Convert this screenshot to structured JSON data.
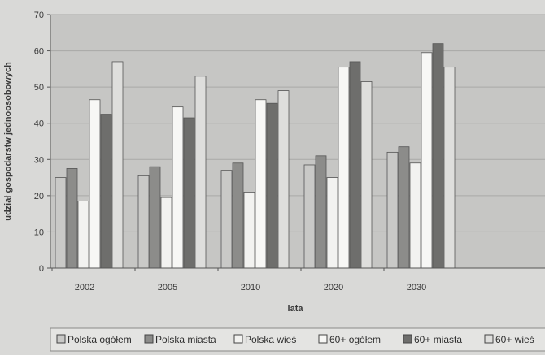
{
  "chart_data": {
    "type": "bar",
    "title": "",
    "xlabel": "lata",
    "ylabel": "udział gospodarstw jednoosobowych",
    "categories": [
      "2002",
      "2005",
      "2010",
      "2020",
      "2030"
    ],
    "ylim": [
      0,
      70
    ],
    "yticks": [
      0,
      10,
      20,
      30,
      40,
      50,
      60,
      70
    ],
    "grid": true,
    "legend_position": "bottom",
    "series": [
      {
        "name": "Polska ogółem",
        "values": [
          25,
          25.5,
          27,
          28.5,
          32
        ],
        "color": "#c9c9c7"
      },
      {
        "name": "Polska miasta",
        "values": [
          27.5,
          28,
          29,
          31,
          33.5
        ],
        "color": "#8c8c8a"
      },
      {
        "name": "Polska wieś",
        "values": [
          18.5,
          19.5,
          21,
          25,
          29
        ],
        "color": "#f2f2f0"
      },
      {
        "name": "60+ ogółem",
        "values": [
          46.5,
          44.5,
          46.5,
          55.5,
          59.5
        ],
        "color": "#f7f7f5"
      },
      {
        "name": "60+ miasta",
        "values": [
          42.5,
          41.5,
          45.5,
          57,
          62
        ],
        "color": "#6e6e6c"
      },
      {
        "name": "60+ wieś",
        "values": [
          57,
          53,
          49,
          51.5,
          55.5
        ],
        "color": "#dededc"
      }
    ]
  }
}
